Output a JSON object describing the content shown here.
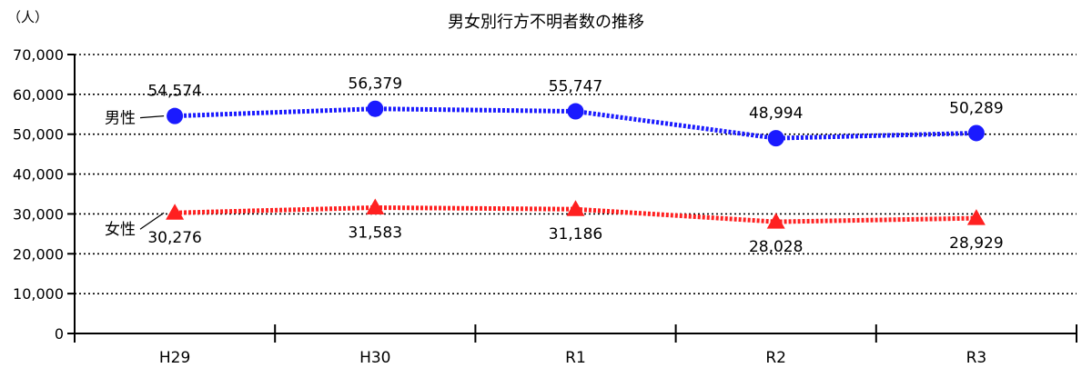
{
  "chart_data": {
    "type": "line",
    "title": "男女別行方不明者数の推移",
    "y_unit": "（人）",
    "categories": [
      "H29",
      "H30",
      "R1",
      "R2",
      "R3"
    ],
    "ylim": [
      0,
      70000
    ],
    "yticks": [
      0,
      10000,
      20000,
      30000,
      40000,
      50000,
      60000,
      70000
    ],
    "ytick_labels": [
      "0",
      "10,000",
      "20,000",
      "30,000",
      "40,000",
      "50,000",
      "60,000",
      "70,000"
    ],
    "grid": "horizontal-dotted",
    "series": [
      {
        "name": "男性",
        "color": "#1a1aff",
        "marker": "circle",
        "values": [
          54574,
          56379,
          55747,
          48994,
          50289
        ],
        "labels": [
          "54,574",
          "56,379",
          "55,747",
          "48,994",
          "50,289"
        ],
        "label_side": [
          "above",
          "above",
          "above",
          "above",
          "above"
        ]
      },
      {
        "name": "女性",
        "color": "#ff2020",
        "marker": "triangle",
        "values": [
          30276,
          31583,
          31186,
          28028,
          28929
        ],
        "labels": [
          "30,276",
          "31,583",
          "31,186",
          "28,028",
          "28,929"
        ],
        "label_side": [
          "below",
          "below",
          "below",
          "below",
          "below"
        ]
      }
    ]
  }
}
